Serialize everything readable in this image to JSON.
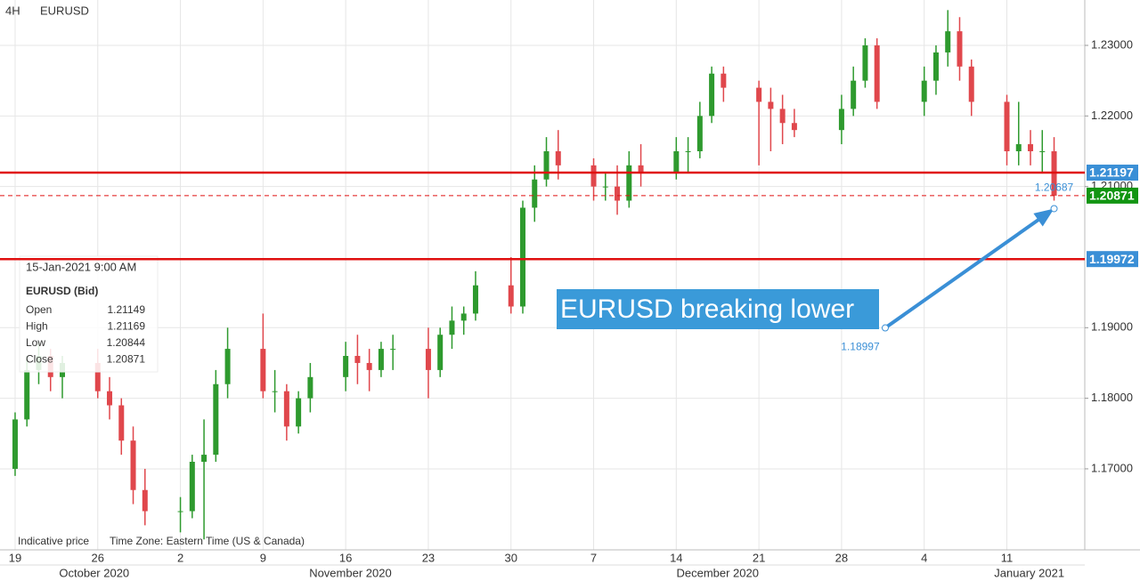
{
  "chart_data": {
    "type": "candlestick",
    "timeframe": "4H",
    "title": "EURUSD",
    "up_color": "#2e9a2e",
    "down_color": "#e0474c",
    "grid": true,
    "xlim": [
      -1.28,
      90.6
    ],
    "ylim": [
      1.15852,
      1.23643
    ],
    "yticks": [
      {
        "value": 1.23,
        "label": "1.23000"
      },
      {
        "value": 1.22,
        "label": "1.22000"
      },
      {
        "value": 1.21,
        "label": "1.21000"
      },
      {
        "value": 1.19,
        "label": "1.19000"
      },
      {
        "value": 1.18,
        "label": "1.18000"
      },
      {
        "value": 1.17,
        "label": "1.17000"
      }
    ],
    "xticks": [
      {
        "value": 0,
        "label": "19"
      },
      {
        "value": 7,
        "label": "26"
      },
      {
        "value": 14,
        "label": "2"
      },
      {
        "value": 21,
        "label": "9"
      },
      {
        "value": 28,
        "label": "16"
      },
      {
        "value": 35,
        "label": "23"
      },
      {
        "value": 42,
        "label": "30"
      },
      {
        "value": 49,
        "label": "7"
      },
      {
        "value": 56,
        "label": "14"
      },
      {
        "value": 63,
        "label": "21"
      },
      {
        "value": 70,
        "label": "28"
      },
      {
        "value": 77,
        "label": "4"
      },
      {
        "value": 84,
        "label": "11"
      }
    ],
    "months": [
      {
        "value": 6.7,
        "label": "October 2020"
      },
      {
        "value": 28.4,
        "label": "November 2020"
      },
      {
        "value": 59.5,
        "label": "December 2020"
      },
      {
        "value": 85.9,
        "label": "January 2021"
      }
    ],
    "x": [
      0,
      1,
      2,
      3,
      4,
      7,
      8,
      9,
      10,
      11,
      14,
      15,
      16,
      17,
      18,
      21,
      22,
      23,
      24,
      25,
      28,
      29,
      30,
      31,
      32,
      35,
      36,
      37,
      38,
      39,
      42,
      43,
      44,
      45,
      46,
      49,
      50,
      51,
      52,
      53,
      56,
      57,
      58,
      59,
      60,
      63,
      64,
      65,
      66,
      70,
      71,
      72,
      73,
      77,
      78,
      79,
      80,
      81,
      84,
      85,
      86,
      87,
      88
    ],
    "candles": [
      [
        1.17,
        1.178,
        1.169,
        1.177
      ],
      [
        1.177,
        1.186,
        1.176,
        1.184
      ],
      [
        1.184,
        1.188,
        1.182,
        1.186
      ],
      [
        1.186,
        1.187,
        1.181,
        1.183
      ],
      [
        1.183,
        1.186,
        1.18,
        1.185
      ],
      [
        1.185,
        1.187,
        1.18,
        1.181
      ],
      [
        1.181,
        1.183,
        1.177,
        1.179
      ],
      [
        1.179,
        1.18,
        1.172,
        1.174
      ],
      [
        1.174,
        1.176,
        1.165,
        1.167
      ],
      [
        1.167,
        1.17,
        1.162,
        1.164
      ],
      [
        1.164,
        1.166,
        1.161,
        1.164
      ],
      [
        1.164,
        1.172,
        1.163,
        1.171
      ],
      [
        1.171,
        1.177,
        1.16,
        1.172
      ],
      [
        1.172,
        1.184,
        1.171,
        1.182
      ],
      [
        1.182,
        1.19,
        1.18,
        1.187
      ],
      [
        1.187,
        1.192,
        1.18,
        1.181
      ],
      [
        1.181,
        1.184,
        1.178,
        1.181
      ],
      [
        1.181,
        1.182,
        1.174,
        1.176
      ],
      [
        1.176,
        1.181,
        1.175,
        1.18
      ],
      [
        1.18,
        1.185,
        1.178,
        1.183
      ],
      [
        1.183,
        1.188,
        1.181,
        1.186
      ],
      [
        1.186,
        1.189,
        1.182,
        1.185
      ],
      [
        1.185,
        1.187,
        1.181,
        1.184
      ],
      [
        1.184,
        1.188,
        1.183,
        1.187
      ],
      [
        1.187,
        1.189,
        1.184,
        1.187
      ],
      [
        1.187,
        1.19,
        1.18,
        1.184
      ],
      [
        1.184,
        1.19,
        1.183,
        1.189
      ],
      [
        1.189,
        1.193,
        1.187,
        1.191
      ],
      [
        1.191,
        1.193,
        1.189,
        1.192
      ],
      [
        1.192,
        1.198,
        1.191,
        1.196
      ],
      [
        1.196,
        1.2,
        1.192,
        1.193
      ],
      [
        1.193,
        1.208,
        1.192,
        1.207
      ],
      [
        1.207,
        1.213,
        1.205,
        1.211
      ],
      [
        1.211,
        1.217,
        1.21,
        1.215
      ],
      [
        1.215,
        1.218,
        1.211,
        1.213
      ],
      [
        1.213,
        1.214,
        1.208,
        1.21
      ],
      [
        1.21,
        1.212,
        1.208,
        1.21
      ],
      [
        1.21,
        1.213,
        1.206,
        1.208
      ],
      [
        1.208,
        1.215,
        1.207,
        1.213
      ],
      [
        1.213,
        1.216,
        1.21,
        1.212
      ],
      [
        1.212,
        1.217,
        1.211,
        1.215
      ],
      [
        1.215,
        1.217,
        1.212,
        1.215
      ],
      [
        1.215,
        1.222,
        1.214,
        1.22
      ],
      [
        1.22,
        1.227,
        1.219,
        1.226
      ],
      [
        1.226,
        1.227,
        1.222,
        1.224
      ],
      [
        1.224,
        1.225,
        1.213,
        1.222
      ],
      [
        1.222,
        1.224,
        1.215,
        1.221
      ],
      [
        1.221,
        1.223,
        1.216,
        1.219
      ],
      [
        1.219,
        1.221,
        1.217,
        1.218
      ],
      [
        1.218,
        1.223,
        1.216,
        1.221
      ],
      [
        1.221,
        1.227,
        1.22,
        1.225
      ],
      [
        1.225,
        1.231,
        1.224,
        1.23
      ],
      [
        1.23,
        1.231,
        1.221,
        1.222
      ],
      [
        1.222,
        1.227,
        1.22,
        1.225
      ],
      [
        1.225,
        1.23,
        1.223,
        1.229
      ],
      [
        1.229,
        1.235,
        1.227,
        1.232
      ],
      [
        1.232,
        1.234,
        1.225,
        1.227
      ],
      [
        1.227,
        1.228,
        1.22,
        1.222
      ],
      [
        1.222,
        1.223,
        1.213,
        1.215
      ],
      [
        1.215,
        1.222,
        1.213,
        1.216
      ],
      [
        1.216,
        1.218,
        1.213,
        1.215
      ],
      [
        1.215,
        1.218,
        1.212,
        1.215
      ],
      [
        1.215,
        1.217,
        1.208,
        1.2087
      ]
    ],
    "levels": [
      {
        "value": 1.21197,
        "color": "#e01010",
        "dash": false,
        "label_color": "#3a8fd6"
      },
      {
        "value": 1.20871,
        "color": "#e01010",
        "dash": true,
        "label_color": "#129512"
      },
      {
        "value": 1.19972,
        "color": "#e01010",
        "dash": false,
        "label_color": "#3a8fd6"
      }
    ],
    "arrow": {
      "x": [
        73.7,
        88
      ],
      "values": [
        1.18997,
        1.20687
      ],
      "color": "#3a8fd6"
    },
    "annotation": "EURUSD breaking lower",
    "info": {
      "datetime": "15-Jan-2021 9:00 AM",
      "symbol": "EURUSD (Bid)",
      "rows": [
        [
          "Open",
          1.21149
        ],
        [
          "High",
          1.21169
        ],
        [
          "Low",
          1.20844
        ],
        [
          "Close",
          1.20871
        ]
      ]
    },
    "footer": [
      "Indicative price",
      "Time Zone: Eastern Time (US & Canada)"
    ]
  }
}
